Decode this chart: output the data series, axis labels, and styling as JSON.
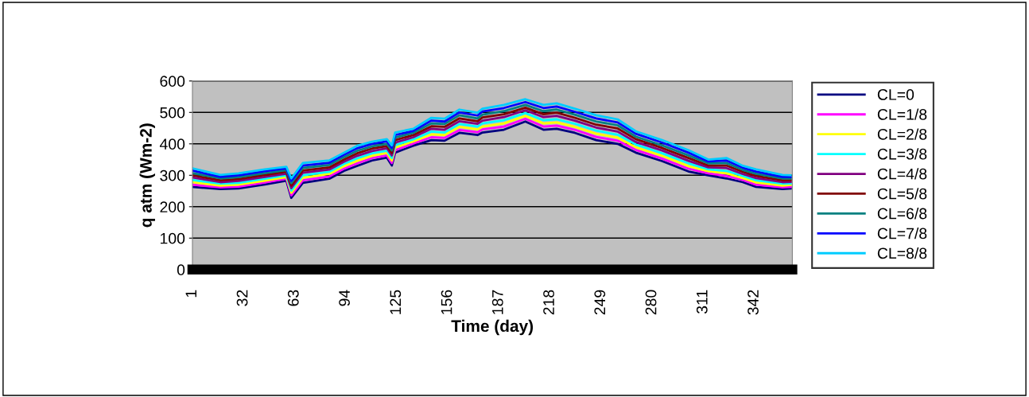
{
  "chart_data": {
    "type": "line",
    "xlabel": "Time (day)",
    "ylabel": "q atm (Wm-2)",
    "x": [
      1,
      18,
      29,
      45,
      58,
      61,
      68,
      84,
      93,
      101,
      110,
      119,
      122,
      124,
      135,
      146,
      154,
      163,
      174,
      177,
      190,
      203,
      214,
      222,
      233,
      246,
      259,
      270,
      286,
      302,
      314,
      325,
      335,
      343,
      359,
      364
    ],
    "xlim": [
      1,
      365
    ],
    "xticks": [
      1,
      32,
      63,
      94,
      125,
      156,
      187,
      218,
      249,
      280,
      311,
      342
    ],
    "ylim": [
      0,
      600
    ],
    "yticks": [
      0,
      100,
      200,
      300,
      400,
      500,
      600
    ],
    "grid": "y",
    "legend": "right",
    "marker": "none",
    "line_style": "solid",
    "series": [
      {
        "name": "CL=0",
        "color": "#000080",
        "values": [
          263,
          256,
          258,
          271,
          283,
          228,
          276,
          289,
          314,
          330,
          347,
          356,
          331,
          372,
          394,
          412,
          410,
          435,
          428,
          436,
          445,
          471,
          445,
          448,
          435,
          412,
          400,
          372,
          345,
          312,
          300,
          290,
          278,
          263,
          256,
          258
        ]
      },
      {
        "name": "CL=1/8",
        "color": "#ff00ff",
        "values": [
          270,
          262,
          264,
          277,
          289,
          236,
          284,
          296,
          321,
          338,
          355,
          363,
          339,
          380,
          401,
          421,
          419,
          444,
          437,
          446,
          455,
          480,
          455,
          458,
          445,
          422,
          410,
          381,
          353,
          321,
          306,
          298,
          285,
          270,
          262,
          263
        ]
      },
      {
        "name": "CL=2/8",
        "color": "#ffff00",
        "values": [
          278,
          267,
          270,
          283,
          294,
          244,
          292,
          304,
          329,
          346,
          362,
          371,
          347,
          388,
          408,
          430,
          428,
          454,
          446,
          455,
          465,
          489,
          465,
          468,
          454,
          432,
          420,
          389,
          362,
          329,
          313,
          306,
          291,
          277,
          267,
          269
        ]
      },
      {
        "name": "CL=3/8",
        "color": "#00ffff",
        "values": [
          285,
          273,
          276,
          289,
          300,
          251,
          300,
          311,
          336,
          354,
          370,
          378,
          355,
          396,
          414,
          439,
          436,
          463,
          455,
          465,
          475,
          498,
          475,
          478,
          464,
          442,
          429,
          398,
          370,
          338,
          319,
          314,
          298,
          284,
          273,
          274
        ]
      },
      {
        "name": "CL=4/8",
        "color": "#800080",
        "values": [
          293,
          278,
          282,
          295,
          305,
          259,
          308,
          318,
          343,
          362,
          377,
          386,
          363,
          404,
          421,
          448,
          445,
          472,
          464,
          474,
          485,
          507,
          485,
          489,
          474,
          452,
          439,
          406,
          379,
          346,
          325,
          323,
          304,
          291,
          278,
          279
        ]
      },
      {
        "name": "CL=5/8",
        "color": "#800000",
        "values": [
          300,
          284,
          288,
          301,
          311,
          267,
          315,
          325,
          350,
          370,
          385,
          393,
          371,
          412,
          428,
          456,
          454,
          481,
          472,
          484,
          494,
          515,
          494,
          499,
          483,
          461,
          449,
          415,
          387,
          355,
          331,
          331,
          311,
          298,
          284,
          284
        ]
      },
      {
        "name": "CL=6/8",
        "color": "#008080",
        "values": [
          307,
          290,
          294,
          307,
          316,
          275,
          323,
          333,
          358,
          378,
          392,
          400,
          379,
          420,
          435,
          465,
          463,
          491,
          481,
          493,
          504,
          524,
          504,
          509,
          493,
          471,
          459,
          423,
          395,
          363,
          338,
          339,
          317,
          305,
          290,
          290
        ]
      },
      {
        "name": "CL=7/8",
        "color": "#0000ff",
        "values": [
          315,
          295,
          300,
          313,
          322,
          282,
          331,
          340,
          365,
          386,
          400,
          408,
          387,
          428,
          441,
          474,
          471,
          500,
          490,
          503,
          514,
          533,
          514,
          519,
          502,
          481,
          468,
          432,
          404,
          372,
          344,
          347,
          324,
          312,
          295,
          295
        ]
      },
      {
        "name": "CL=8/8",
        "color": "#00ccff",
        "values": [
          322,
          301,
          306,
          319,
          327,
          290,
          339,
          347,
          372,
          394,
          407,
          415,
          395,
          436,
          448,
          483,
          480,
          509,
          499,
          512,
          524,
          542,
          524,
          529,
          512,
          491,
          478,
          440,
          412,
          380,
          350,
          355,
          330,
          319,
          301,
          300
        ]
      }
    ]
  }
}
